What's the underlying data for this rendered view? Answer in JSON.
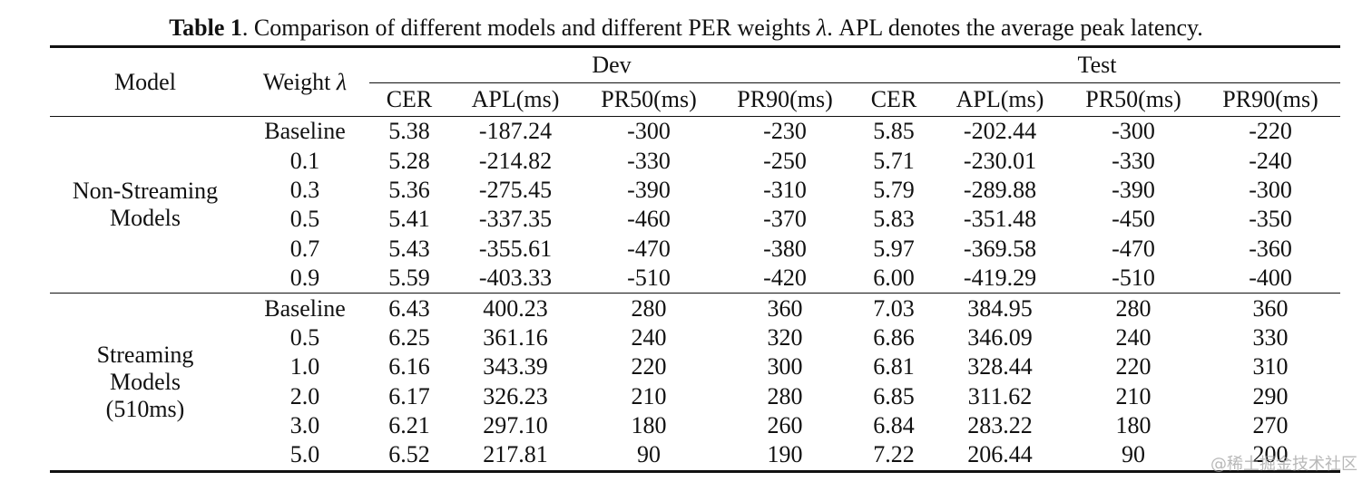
{
  "caption": {
    "label": "Table 1",
    "text_before_lambda": ". Comparison of different models and different PER weights ",
    "lambda": "λ",
    "text_after_lambda": ". APL denotes the average peak latency."
  },
  "header": {
    "model": "Model",
    "weight": "Weight ",
    "lambda": "λ",
    "dev": "Dev",
    "test": "Test",
    "metrics": [
      "CER",
      "APL(ms)",
      "PR50(ms)",
      "PR90(ms)",
      "CER",
      "APL(ms)",
      "PR50(ms)",
      "PR90(ms)"
    ]
  },
  "groups": [
    {
      "label_lines": [
        "Non-Streaming",
        "Models"
      ],
      "rows": [
        {
          "weight": "Baseline",
          "values": [
            "5.38",
            "-187.24",
            "-300",
            "-230",
            "5.85",
            "-202.44",
            "-300",
            "-220"
          ]
        },
        {
          "weight": "0.1",
          "values": [
            "5.28",
            "-214.82",
            "-330",
            "-250",
            "5.71",
            "-230.01",
            "-330",
            "-240"
          ]
        },
        {
          "weight": "0.3",
          "values": [
            "5.36",
            "-275.45",
            "-390",
            "-310",
            "5.79",
            "-289.88",
            "-390",
            "-300"
          ]
        },
        {
          "weight": "0.5",
          "values": [
            "5.41",
            "-337.35",
            "-460",
            "-370",
            "5.83",
            "-351.48",
            "-450",
            "-350"
          ]
        },
        {
          "weight": "0.7",
          "values": [
            "5.43",
            "-355.61",
            "-470",
            "-380",
            "5.97",
            "-369.58",
            "-470",
            "-360"
          ]
        },
        {
          "weight": "0.9",
          "values": [
            "5.59",
            "-403.33",
            "-510",
            "-420",
            "6.00",
            "-419.29",
            "-510",
            "-400"
          ]
        }
      ]
    },
    {
      "label_lines": [
        "Streaming",
        "Models",
        "(510ms)"
      ],
      "rows": [
        {
          "weight": "Baseline",
          "values": [
            "6.43",
            "400.23",
            "280",
            "360",
            "7.03",
            "384.95",
            "280",
            "360"
          ]
        },
        {
          "weight": "0.5",
          "values": [
            "6.25",
            "361.16",
            "240",
            "320",
            "6.86",
            "346.09",
            "240",
            "330"
          ]
        },
        {
          "weight": "1.0",
          "values": [
            "6.16",
            "343.39",
            "220",
            "300",
            "6.81",
            "328.44",
            "220",
            "310"
          ]
        },
        {
          "weight": "2.0",
          "values": [
            "6.17",
            "326.23",
            "210",
            "280",
            "6.85",
            "311.62",
            "210",
            "290"
          ]
        },
        {
          "weight": "3.0",
          "values": [
            "6.21",
            "297.10",
            "180",
            "260",
            "6.84",
            "283.22",
            "180",
            "270"
          ]
        },
        {
          "weight": "5.0",
          "values": [
            "6.52",
            "217.81",
            "90",
            "190",
            "7.22",
            "206.44",
            "90",
            "200"
          ]
        }
      ]
    }
  ],
  "watermark": "@稀土掘金技术社区"
}
